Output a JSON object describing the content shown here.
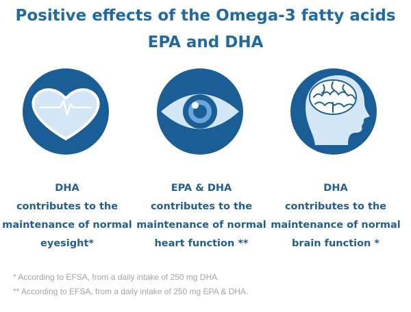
{
  "title": {
    "line1": "Positive effects of the Omega-3 fatty acids",
    "line2": "EPA and DHA"
  },
  "icons": [
    "heart-icon",
    "eye-icon",
    "brain-icon"
  ],
  "colors": {
    "title": "#1f6aa6",
    "circle": "#1a5e98",
    "icon_fill": "#cfe3f4",
    "caption": "#1f5f96",
    "footnote": "#a3a3a3"
  },
  "items": [
    {
      "head": "DHA",
      "line1": "contributes to the",
      "line2": "maintenance of normal",
      "line3": "eyesight*"
    },
    {
      "head": "EPA & DHA",
      "line1": "contributes to the",
      "line2": "maintenance of normal",
      "line3": "heart function **"
    },
    {
      "head": "DHA",
      "line1": "contributes to the",
      "line2": "maintenance of normal",
      "line3": "brain function *"
    }
  ],
  "footnotes": [
    "* According to EFSA, from a daily intake of 250 mg DHA.",
    "** According to EFSA, from a daily intake of 250 mg EPA & DHA."
  ]
}
